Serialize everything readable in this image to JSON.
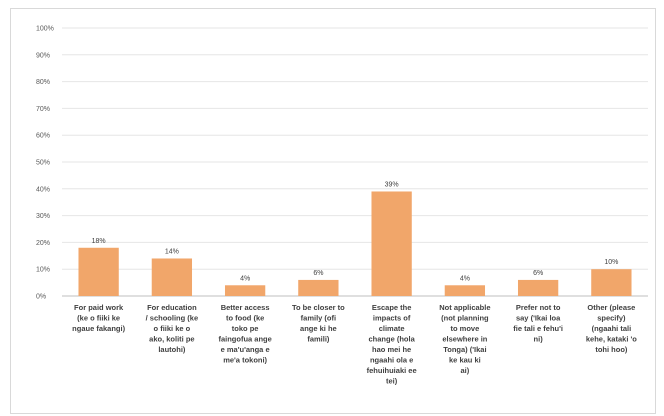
{
  "chart_data": {
    "type": "bar",
    "title": "",
    "xlabel": "",
    "ylabel": "",
    "ylim": [
      0,
      100
    ],
    "yticks": [
      "0%",
      "10%",
      "20%",
      "30%",
      "40%",
      "50%",
      "60%",
      "70%",
      "80%",
      "90%",
      "100%"
    ],
    "categories": [
      [
        "For paid work",
        "(ke o fiiki ke",
        "ngaue fakangi)"
      ],
      [
        "For education",
        "/ schooling (ke",
        "o fiiki ke o",
        "ako, koliti pe",
        "lautohi)"
      ],
      [
        "Better access",
        "to food (ke",
        "toko pe",
        "faingofua ange",
        "e ma'u'anga e",
        "me'a tokoni)"
      ],
      [
        "To be closer to",
        "family (ofi",
        "ange ki he",
        "famili)"
      ],
      [
        "Escape the",
        "impacts of",
        "climate",
        "change (hola",
        "hao mei he",
        "ngaahi ola e",
        "fehuihuiaki ee",
        "tei)"
      ],
      [
        "Not applicable",
        "(not planning",
        "to move",
        "elsewhere in",
        "Tonga) ('Ikai",
        "ke kau ki",
        "ai)"
      ],
      [
        "Prefer not to",
        "say ('Ikai loa",
        "fie tali e fehu'i",
        "ni)"
      ],
      [
        "Other (please",
        "specify)",
        "(ngaahi tali",
        "kehe, kataki 'o",
        "tohi hoo)"
      ]
    ],
    "values": [
      18,
      14,
      4,
      6,
      39,
      4,
      6,
      10
    ],
    "data_labels": [
      "18%",
      "14%",
      "4%",
      "6%",
      "39%",
      "4%",
      "6%",
      "10%"
    ],
    "bar_color": "#f1a66a",
    "grid": true,
    "legend": "none"
  }
}
